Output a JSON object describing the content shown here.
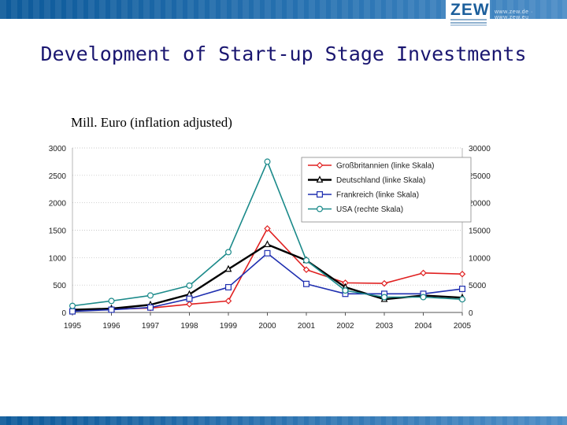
{
  "header": {
    "logo_text": "ZEW",
    "url_text": "www.zew.de · www.zew.eu"
  },
  "slide": {
    "title": "Development of Start-up Stage Investments",
    "subtitle": "Mill. Euro (inflation adjusted)"
  },
  "chart_data": {
    "type": "line",
    "x": [
      "1995",
      "1996",
      "1997",
      "1998",
      "1999",
      "2000",
      "2001",
      "2002",
      "2003",
      "2004",
      "2005"
    ],
    "y_left_ticks": [
      "0",
      "500",
      "1000",
      "1500",
      "2000",
      "2500",
      "3000"
    ],
    "y_right_ticks": [
      "0",
      "5000",
      "10000",
      "15000",
      "20000",
      "25000",
      "30000"
    ],
    "ylim_left": [
      0,
      3000
    ],
    "ylim_right": [
      0,
      30000
    ],
    "grid": true,
    "legend_position": "top-right",
    "series": [
      {
        "name": "Großbritannien (linke Skala)",
        "axis": "left",
        "color": "#e02020",
        "marker": "diamond",
        "values": [
          40,
          60,
          80,
          150,
          210,
          1530,
          780,
          540,
          530,
          720,
          700
        ]
      },
      {
        "name": "Deutschland (linke Skala)",
        "axis": "left",
        "color": "#000000",
        "marker": "triangle",
        "values": [
          50,
          70,
          140,
          330,
          790,
          1240,
          950,
          460,
          240,
          310,
          270
        ]
      },
      {
        "name": "Frankreich (linke Skala)",
        "axis": "left",
        "color": "#1f2fb0",
        "marker": "square",
        "values": [
          20,
          50,
          90,
          250,
          460,
          1080,
          520,
          340,
          340,
          340,
          430
        ]
      },
      {
        "name": "USA (rechte Skala)",
        "axis": "right",
        "color": "#1b8a8a",
        "marker": "circle",
        "values": [
          1200,
          2100,
          3100,
          4900,
          11000,
          27500,
          9500,
          4000,
          2800,
          2800,
          2400
        ]
      }
    ]
  }
}
